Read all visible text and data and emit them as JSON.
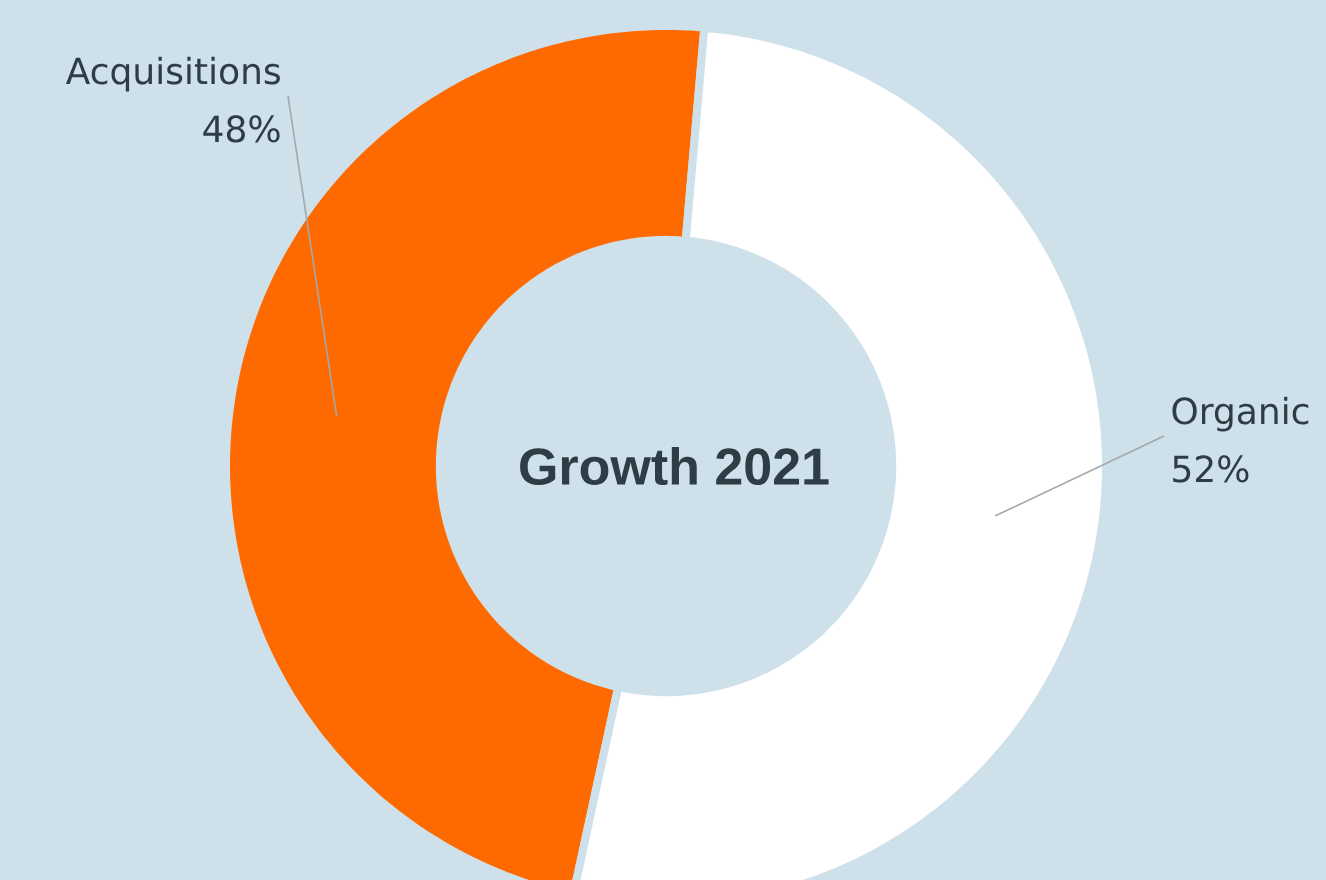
{
  "chart_data": {
    "type": "donut",
    "title": "Growth 2021",
    "categories": [
      "Acquisitions",
      "Organic"
    ],
    "values": [
      48,
      52
    ],
    "colors": [
      "#ff6a00",
      "#ffffff"
    ],
    "value_labels": [
      "48%",
      "52%"
    ]
  }
}
